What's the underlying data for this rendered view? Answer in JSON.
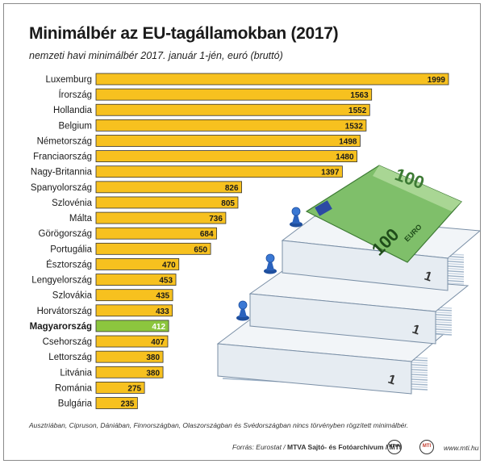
{
  "title": "Minimálbér az EU-tagállamokban (2017)",
  "subtitle": "nemzeti havi minimálbér 2017. január 1-jén, euró (bruttó)",
  "footnote": "Ausztriában, Cipruson, Dániában, Finnországban, Olaszországban és Svédországban nincs törvényben rögzített minimálbér.",
  "source": {
    "label": "Forrás: Eurostat / ",
    "org": "MTVA Sajtó- és Fotóarchívum / MTI",
    "site": "www.mti.hu"
  },
  "logos": {
    "mtva": "MTVA",
    "mti": "MTI"
  },
  "banknote": {
    "value": "100",
    "currency": "EURO",
    "stack_value": "1"
  },
  "colors": {
    "bar": "#f7c11f",
    "highlight": "#8cc63e",
    "stroke": "#333333"
  },
  "chart_data": {
    "type": "bar",
    "orientation": "horizontal",
    "categories": [
      "Luxemburg",
      "Írország",
      "Hollandia",
      "Belgium",
      "Németország",
      "Franciaország",
      "Nagy-Britannia",
      "Spanyolország",
      "Szlovénia",
      "Málta",
      "Görögország",
      "Portugália",
      "Észtország",
      "Lengyelország",
      "Szlovákia",
      "Horvátország",
      "Magyarország",
      "Csehország",
      "Lettország",
      "Litvánia",
      "Románia",
      "Bulgária"
    ],
    "values": [
      1999,
      1563,
      1552,
      1532,
      1498,
      1480,
      1397,
      826,
      805,
      736,
      684,
      650,
      470,
      453,
      435,
      433,
      412,
      407,
      380,
      380,
      275,
      235
    ],
    "highlight": "Magyarország",
    "xlim": [
      0,
      1999
    ],
    "grid": false,
    "legend": "none"
  }
}
